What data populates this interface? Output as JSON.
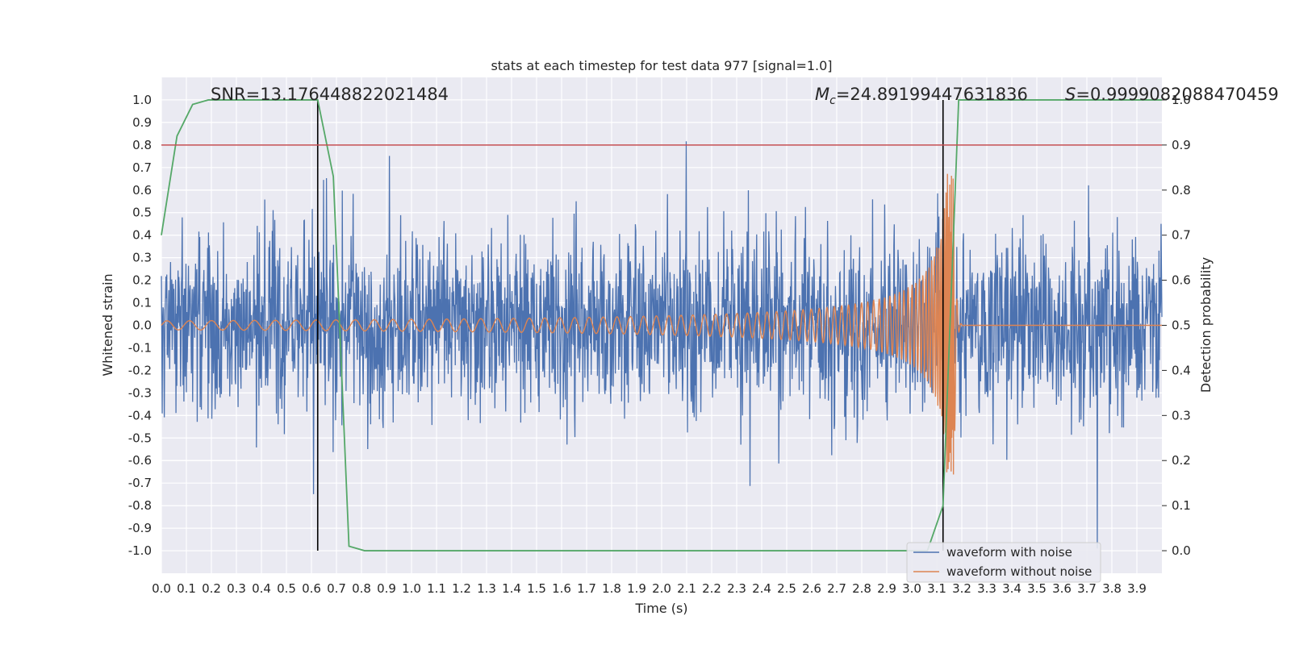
{
  "chart_data": {
    "type": "line",
    "title": "stats at each timestep for test data 977 [signal=1.0]",
    "xlabel": "Time (s)",
    "ylabel": "Whitened strain",
    "y2label": "Detection probability",
    "xlim": [
      0.0,
      4.0
    ],
    "ylim": [
      -1.1,
      1.1
    ],
    "y2lim": [
      -0.05,
      1.05
    ],
    "grid": true,
    "legend_position": "bottom-right",
    "x_ticks": [
      "0.0",
      "0.1",
      "0.2",
      "0.3",
      "0.4",
      "0.5",
      "0.6",
      "0.7",
      "0.8",
      "0.9",
      "1.0",
      "1.1",
      "1.2",
      "1.3",
      "1.4",
      "1.5",
      "1.6",
      "1.7",
      "1.8",
      "1.9",
      "2.0",
      "2.1",
      "2.2",
      "2.3",
      "2.4",
      "2.5",
      "2.6",
      "2.7",
      "2.8",
      "2.9",
      "3.0",
      "3.1",
      "3.2",
      "3.3",
      "3.4",
      "3.5",
      "3.6",
      "3.7",
      "3.8",
      "3.9"
    ],
    "y_ticks": [
      "1.0",
      "0.9",
      "0.8",
      "0.7",
      "0.6",
      "0.5",
      "0.4",
      "0.3",
      "0.2",
      "0.1",
      "0.0",
      "-0.1",
      "-0.2",
      "-0.3",
      "-0.4",
      "-0.5",
      "-0.6",
      "-0.7",
      "-0.8",
      "-0.9",
      "-1.0"
    ],
    "y2_ticks": [
      "1.0",
      "0.9",
      "0.8",
      "0.7",
      "0.6",
      "0.5",
      "0.4",
      "0.3",
      "0.2",
      "0.1",
      "0.0"
    ],
    "annotations": {
      "snr": "SNR=13.176448822021484",
      "mc_symbol": "M",
      "mc_sub": "c",
      "mc_value": "=24.89199447631836",
      "s_symbol": "S",
      "s_value": "=0.9999082088470459"
    },
    "threshold": {
      "y2": 0.9,
      "color": "#c44e52"
    },
    "vertical_markers": [
      0.625,
      3.125
    ],
    "series": [
      {
        "name": "waveform with noise",
        "axis": "left",
        "color": "#4c72b0",
        "amplitude_range": [
          -0.99,
          0.99
        ],
        "mean": 0.0
      },
      {
        "name": "waveform without noise",
        "axis": "left",
        "color": "#dd8452",
        "chirp_end": 3.17,
        "merger_peak": 0.68,
        "early_amplitude": 0.02
      },
      {
        "axis": "right",
        "color": "#55a868",
        "x": [
          0.0,
          0.0625,
          0.125,
          0.1875,
          0.25,
          0.3125,
          0.375,
          0.4375,
          0.5,
          0.5625,
          0.625,
          0.6875,
          0.75,
          0.8125,
          0.875,
          3.0,
          3.0625,
          3.125,
          3.1875,
          3.25,
          3.5,
          3.75,
          4.0
        ],
        "values": [
          0.7,
          0.92,
          0.99,
          1.0,
          1.0,
          1.0,
          1.0,
          1.0,
          1.0,
          1.0,
          1.0,
          0.83,
          0.01,
          0.0,
          0.0,
          0.0,
          0.0,
          0.1,
          1.0,
          1.0,
          1.0,
          1.0,
          1.0
        ]
      }
    ],
    "colors": {
      "background": "#eaeaf2",
      "grid": "#ffffff",
      "marker": "#000000"
    }
  }
}
